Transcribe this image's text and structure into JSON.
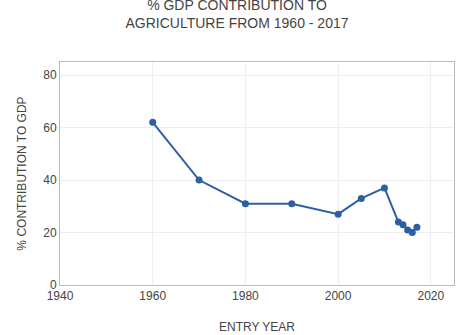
{
  "chart_data": {
    "type": "line",
    "title": "% GDP CONTRIBUTION TO\nAGRICULTURE FROM 1960 - 2017",
    "xlabel": "ENTRY YEAR",
    "ylabel": "% CONTRIBUTION TO GDP",
    "x": [
      1960,
      1970,
      1980,
      1990,
      2000,
      2005,
      2010,
      2013,
      2014,
      2015,
      2016,
      2017
    ],
    "values": [
      62,
      40,
      31,
      31,
      27,
      33,
      37,
      24,
      23,
      21,
      20,
      22
    ],
    "color": "#2e5fa3",
    "marker": "circle",
    "xlim": [
      1940,
      2025
    ],
    "ylim": [
      0,
      85
    ],
    "xticks": [
      1940,
      1960,
      1980,
      2000,
      2020
    ],
    "yticks": [
      0,
      20,
      40,
      60,
      80
    ],
    "grid": true
  }
}
